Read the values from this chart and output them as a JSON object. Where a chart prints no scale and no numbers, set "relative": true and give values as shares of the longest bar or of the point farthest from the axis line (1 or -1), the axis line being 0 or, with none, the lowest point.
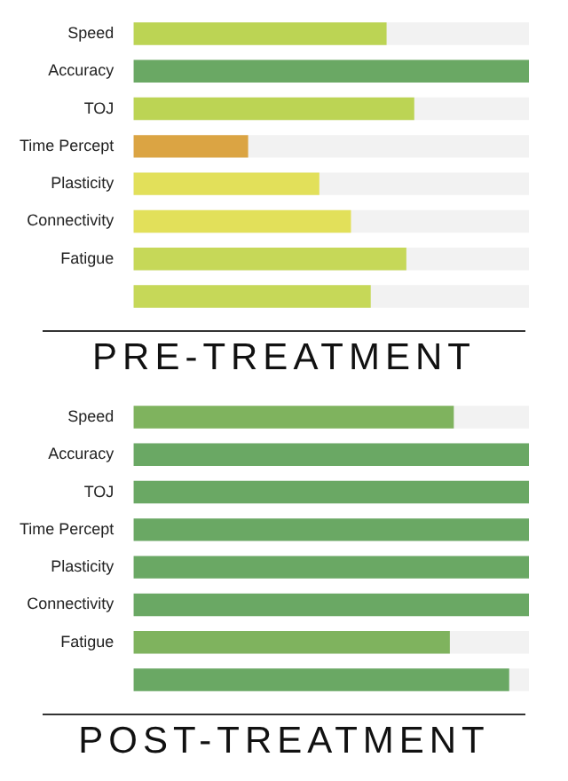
{
  "chart_data": [
    {
      "type": "bar",
      "orientation": "horizontal",
      "relative": true,
      "title": "PRE-TREATMENT",
      "tick_labels": "y",
      "categories": [
        "Speed",
        "Accuracy",
        "TOJ",
        "Time Percept",
        "Plasticity",
        "Connectivity",
        "Fatigue",
        null
      ],
      "values": [
        0.64,
        1,
        0.71,
        0.29,
        0.47,
        0.55,
        0.69,
        0.6
      ],
      "colors": [
        "#bcd454",
        "#6aa864",
        "#bcd454",
        "#dba443",
        "#e2e05a",
        "#e2e05a",
        "#c6d858",
        "#c6d858"
      ]
    },
    {
      "type": "bar",
      "orientation": "horizontal",
      "relative": true,
      "title": "POST-TREATMENT",
      "tick_labels": "y",
      "categories": [
        "Speed",
        "Accuracy",
        "TOJ",
        "Time Percept",
        "Plasticity",
        "Connectivity",
        "Fatigue",
        null
      ],
      "values": [
        0.81,
        1,
        1,
        1,
        1,
        1,
        0.8,
        0.95
      ],
      "colors": [
        "#7fb35e",
        "#6aa864",
        "#6aa864",
        "#6aa864",
        "#6aa864",
        "#6aa864",
        "#7fb35e",
        "#6aa864"
      ]
    }
  ]
}
